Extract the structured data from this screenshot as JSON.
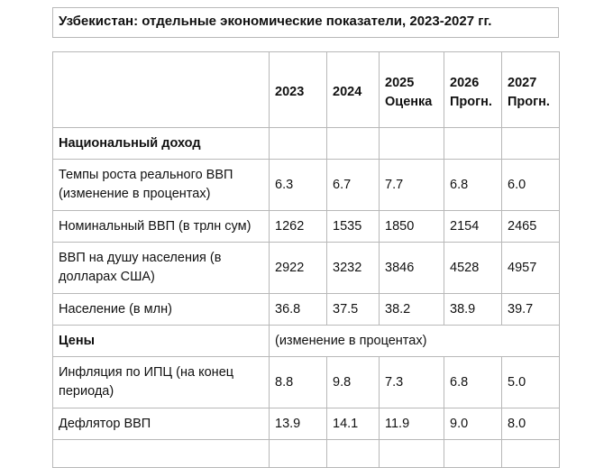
{
  "title": "Узбекистан: отдельные экономические показатели, 2023-2027 гг.",
  "header": {
    "years": [
      {
        "line1": "",
        "line2": "2023"
      },
      {
        "line1": "",
        "line2": "2024"
      },
      {
        "line1": "2025",
        "line2": "Оценка"
      },
      {
        "line1": "2026",
        "line2": "Прогн."
      },
      {
        "line1": "2027",
        "line2": "Прогн."
      }
    ]
  },
  "sections": {
    "national_income": {
      "label": "Национальный доход"
    },
    "prices": {
      "label": "Цены",
      "note": "(изменение в процентах)"
    }
  },
  "rows": [
    {
      "label": "Темпы роста реального ВВП (изменение в процентах)",
      "values": [
        "6.3",
        "6.7",
        "7.7",
        "6.8",
        "6.0"
      ]
    },
    {
      "label": "Номинальный ВВП (в трлн сум)",
      "values": [
        "1262",
        "1535",
        "1850",
        "2154",
        "2465"
      ]
    },
    {
      "label": "ВВП на душу населения (в долларах США)",
      "values": [
        "2922",
        "3232",
        "3846",
        "4528",
        "4957"
      ]
    },
    {
      "label": "Население (в млн)",
      "values": [
        "36.8",
        "37.5",
        "38.2",
        "38.9",
        "39.7"
      ]
    },
    {
      "label": "Инфляция по ИПЦ (на конец периода)",
      "values": [
        "8.8",
        "9.8",
        "7.3",
        "6.8",
        "5.0"
      ]
    },
    {
      "label": "Дефлятор ВВП",
      "values": [
        "13.9",
        "14.1",
        "11.9",
        "9.0",
        "8.0"
      ]
    }
  ]
}
